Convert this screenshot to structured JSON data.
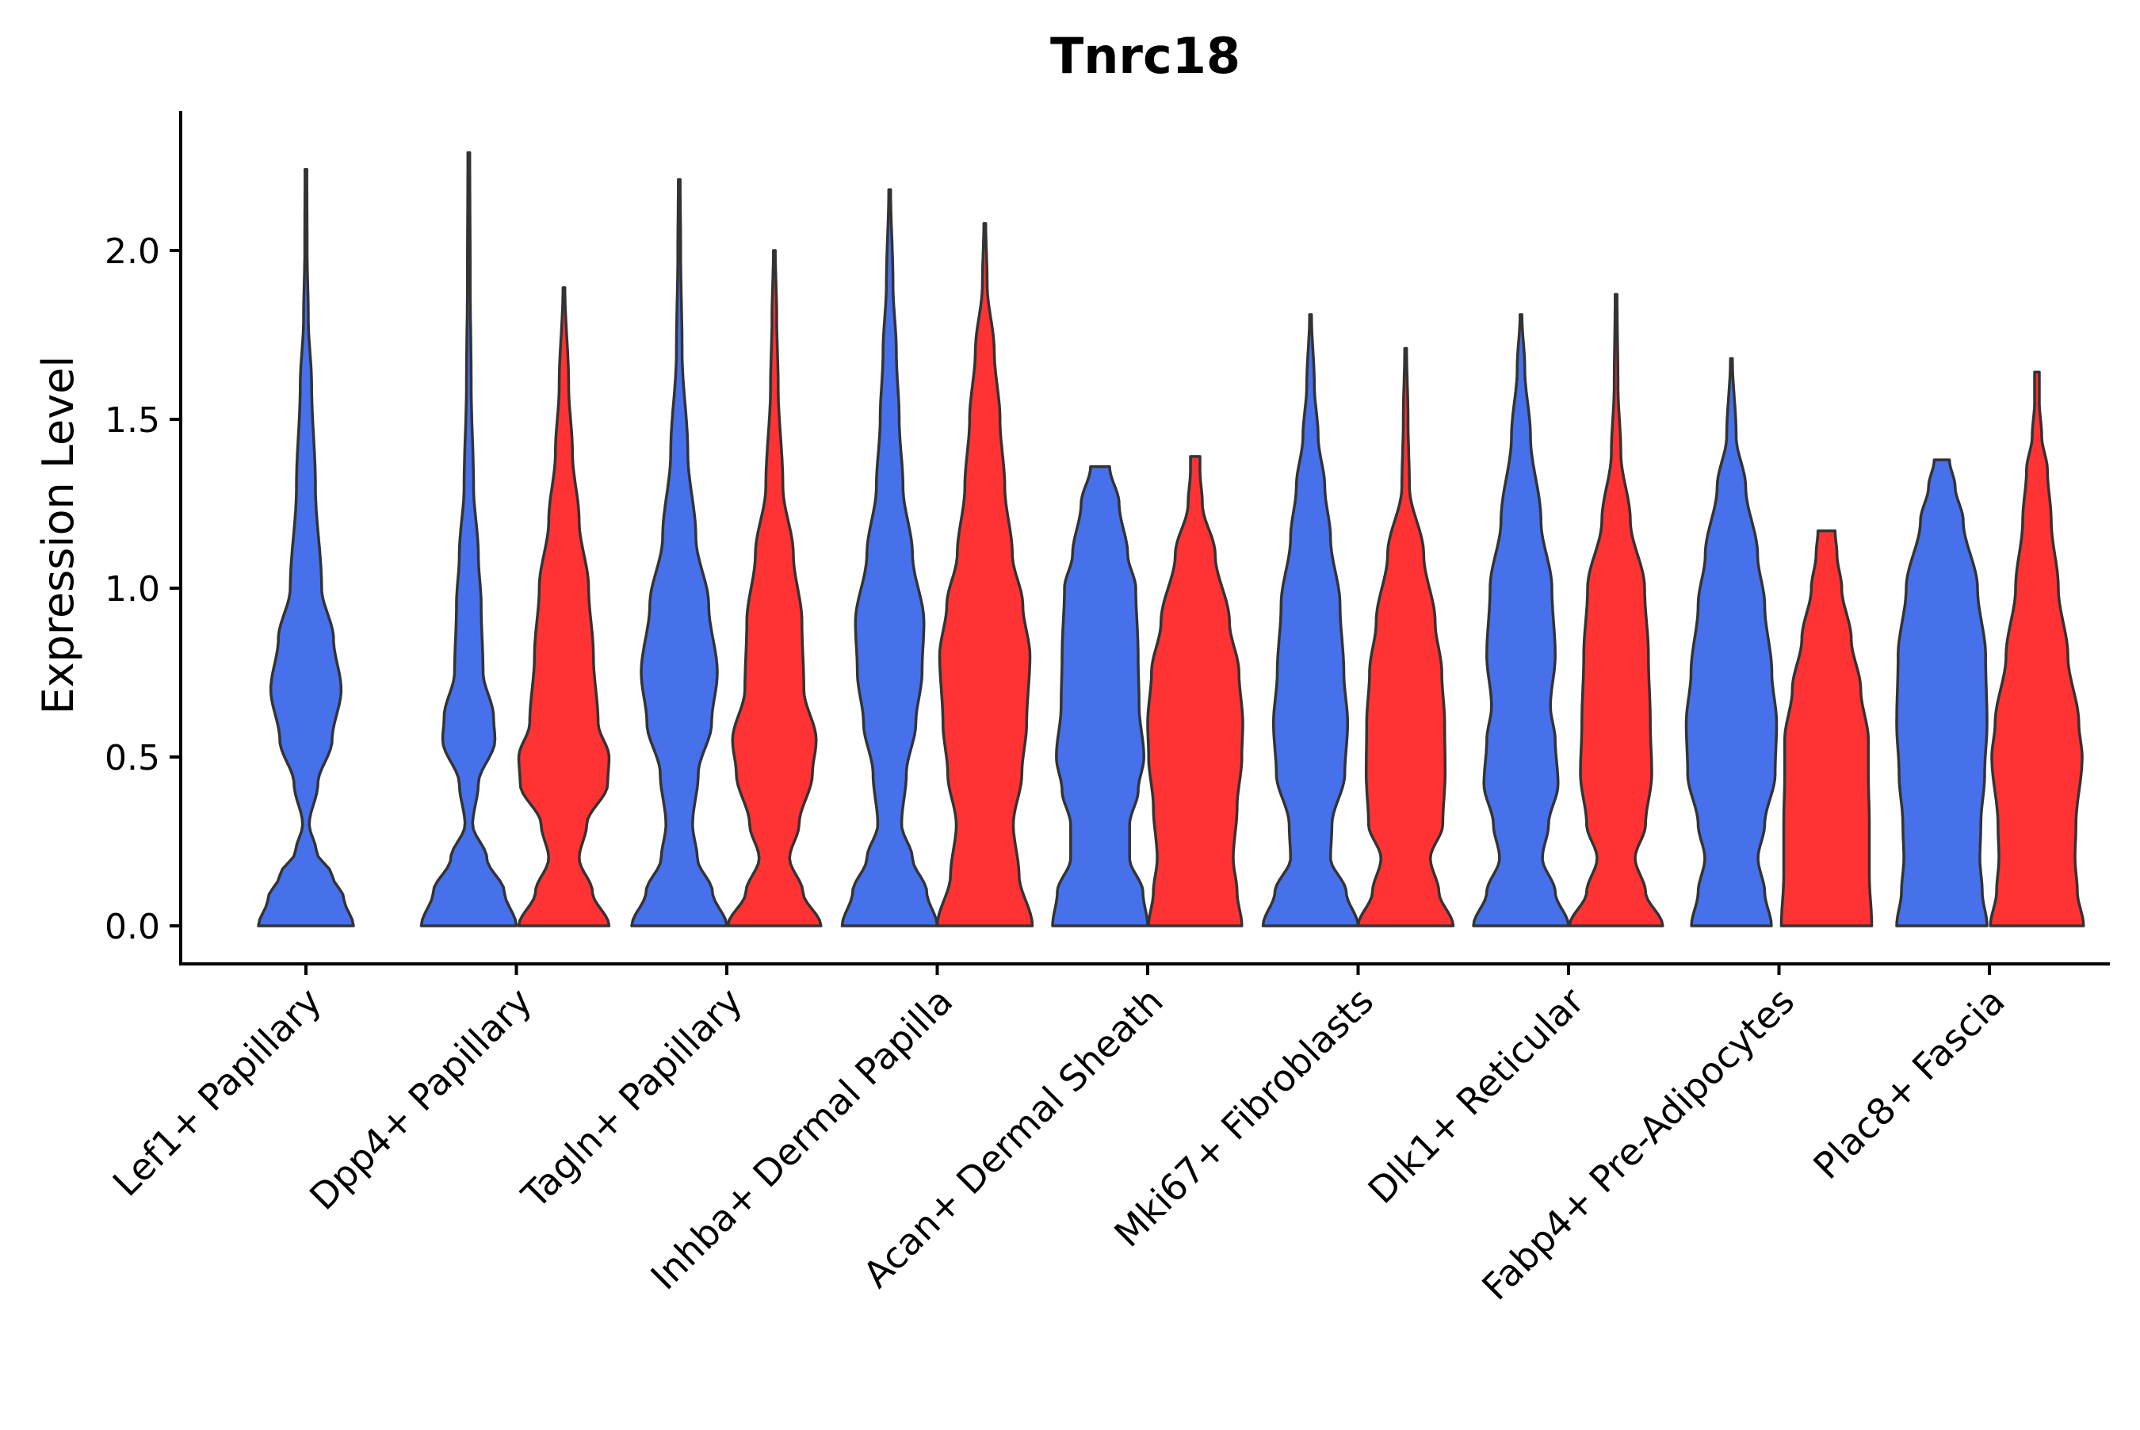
{
  "chart_data": {
    "type": "violin",
    "title": "Tnrc18",
    "xlabel": "",
    "ylabel": "Expression Level",
    "ylim": [
      -0.11,
      2.4
    ],
    "yticks": [
      "0.0",
      "0.5",
      "1.0",
      "1.5",
      "2.0"
    ],
    "ytick_values": [
      0,
      0.5,
      1.0,
      1.5,
      2.0
    ],
    "categories": [
      "Lef1+ Papillary",
      "Dpp4+ Papillary",
      "Tagln+ Papillary",
      "Inhba+ Dermal Papilla",
      "Acan+ Dermal Sheath",
      "Mki67+ Fibroblasts",
      "Dlk1+ Reticular",
      "Fabp4+ Pre-Adipocytes",
      "Plac8+ Fascia"
    ],
    "series_colors": {
      "group1": "#4770EB",
      "group2": "#FF3333"
    },
    "outline_color": "#333333",
    "violins": [
      {
        "category": 0,
        "group": "group1",
        "max": 2.24,
        "profile": [
          [
            0,
            1.0
          ],
          [
            0.08,
            0.8
          ],
          [
            0.15,
            0.55
          ],
          [
            0.22,
            0.22
          ],
          [
            0.3,
            0.07
          ],
          [
            0.42,
            0.25
          ],
          [
            0.55,
            0.55
          ],
          [
            0.7,
            0.74
          ],
          [
            0.85,
            0.58
          ],
          [
            1.0,
            0.33
          ],
          [
            1.3,
            0.2
          ],
          [
            1.6,
            0.12
          ],
          [
            1.8,
            0.05
          ],
          [
            2.0,
            0.025
          ],
          [
            2.24,
            0.02
          ]
        ]
      },
      {
        "category": 1,
        "group": "group1",
        "max": 2.29,
        "profile": [
          [
            0,
            1.0
          ],
          [
            0.1,
            0.75
          ],
          [
            0.2,
            0.38
          ],
          [
            0.3,
            0.08
          ],
          [
            0.42,
            0.2
          ],
          [
            0.55,
            0.55
          ],
          [
            0.62,
            0.52
          ],
          [
            0.75,
            0.3
          ],
          [
            0.95,
            0.26
          ],
          [
            1.1,
            0.2
          ],
          [
            1.3,
            0.1
          ],
          [
            1.6,
            0.05
          ],
          [
            1.9,
            0.03
          ],
          [
            2.29,
            0.02
          ]
        ]
      },
      {
        "category": 1,
        "group": "group2",
        "max": 1.89,
        "profile": [
          [
            0,
            0.95
          ],
          [
            0.1,
            0.6
          ],
          [
            0.2,
            0.32
          ],
          [
            0.3,
            0.48
          ],
          [
            0.42,
            0.92
          ],
          [
            0.5,
            0.95
          ],
          [
            0.6,
            0.72
          ],
          [
            0.8,
            0.62
          ],
          [
            1.0,
            0.52
          ],
          [
            1.2,
            0.32
          ],
          [
            1.4,
            0.18
          ],
          [
            1.6,
            0.1
          ],
          [
            1.89,
            0.02
          ]
        ]
      },
      {
        "category": 2,
        "group": "group1",
        "max": 2.21,
        "profile": [
          [
            0,
            1.0
          ],
          [
            0.1,
            0.7
          ],
          [
            0.2,
            0.38
          ],
          [
            0.3,
            0.28
          ],
          [
            0.45,
            0.4
          ],
          [
            0.6,
            0.68
          ],
          [
            0.75,
            0.8
          ],
          [
            0.95,
            0.62
          ],
          [
            1.15,
            0.35
          ],
          [
            1.4,
            0.18
          ],
          [
            1.7,
            0.06
          ],
          [
            2.0,
            0.03
          ],
          [
            2.21,
            0.02
          ]
        ]
      },
      {
        "category": 2,
        "group": "group2",
        "max": 2.0,
        "profile": [
          [
            0,
            0.98
          ],
          [
            0.1,
            0.6
          ],
          [
            0.2,
            0.32
          ],
          [
            0.3,
            0.52
          ],
          [
            0.45,
            0.8
          ],
          [
            0.55,
            0.88
          ],
          [
            0.7,
            0.62
          ],
          [
            0.9,
            0.58
          ],
          [
            1.1,
            0.4
          ],
          [
            1.3,
            0.18
          ],
          [
            1.6,
            0.08
          ],
          [
            1.8,
            0.05
          ],
          [
            2.0,
            0.02
          ]
        ]
      },
      {
        "category": 3,
        "group": "group1",
        "max": 2.18,
        "profile": [
          [
            0,
            1.0
          ],
          [
            0.1,
            0.78
          ],
          [
            0.2,
            0.48
          ],
          [
            0.3,
            0.25
          ],
          [
            0.45,
            0.35
          ],
          [
            0.6,
            0.55
          ],
          [
            0.75,
            0.68
          ],
          [
            0.9,
            0.72
          ],
          [
            1.1,
            0.48
          ],
          [
            1.3,
            0.28
          ],
          [
            1.5,
            0.2
          ],
          [
            1.7,
            0.14
          ],
          [
            1.9,
            0.07
          ],
          [
            2.18,
            0.02
          ]
        ]
      },
      {
        "category": 3,
        "group": "group2",
        "max": 2.08,
        "profile": [
          [
            0,
            1.0
          ],
          [
            0.15,
            0.72
          ],
          [
            0.3,
            0.6
          ],
          [
            0.45,
            0.78
          ],
          [
            0.6,
            0.88
          ],
          [
            0.8,
            0.95
          ],
          [
            0.95,
            0.8
          ],
          [
            1.1,
            0.58
          ],
          [
            1.3,
            0.42
          ],
          [
            1.5,
            0.32
          ],
          [
            1.7,
            0.2
          ],
          [
            1.9,
            0.05
          ],
          [
            2.08,
            0.02
          ]
        ]
      },
      {
        "category": 4,
        "group": "group1",
        "max": 1.36,
        "profile": [
          [
            0,
            1.0
          ],
          [
            0.1,
            0.9
          ],
          [
            0.2,
            0.62
          ],
          [
            0.3,
            0.62
          ],
          [
            0.4,
            0.8
          ],
          [
            0.5,
            0.92
          ],
          [
            0.65,
            0.82
          ],
          [
            0.8,
            0.8
          ],
          [
            1.0,
            0.75
          ],
          [
            1.1,
            0.58
          ],
          [
            1.25,
            0.4
          ],
          [
            1.36,
            0.2
          ]
        ]
      },
      {
        "category": 4,
        "group": "group2",
        "max": 1.39,
        "profile": [
          [
            0,
            0.98
          ],
          [
            0.1,
            0.88
          ],
          [
            0.2,
            0.8
          ],
          [
            0.35,
            0.88
          ],
          [
            0.5,
            0.98
          ],
          [
            0.6,
            1.0
          ],
          [
            0.75,
            0.92
          ],
          [
            0.9,
            0.72
          ],
          [
            1.1,
            0.42
          ],
          [
            1.25,
            0.15
          ],
          [
            1.35,
            0.1
          ],
          [
            1.39,
            0.1
          ]
        ]
      },
      {
        "category": 5,
        "group": "group1",
        "max": 1.81,
        "profile": [
          [
            0,
            1.0
          ],
          [
            0.1,
            0.75
          ],
          [
            0.2,
            0.42
          ],
          [
            0.3,
            0.45
          ],
          [
            0.45,
            0.72
          ],
          [
            0.6,
            0.78
          ],
          [
            0.75,
            0.7
          ],
          [
            0.95,
            0.62
          ],
          [
            1.15,
            0.42
          ],
          [
            1.3,
            0.3
          ],
          [
            1.45,
            0.16
          ],
          [
            1.6,
            0.08
          ],
          [
            1.81,
            0.02
          ]
        ]
      },
      {
        "category": 5,
        "group": "group2",
        "max": 1.71,
        "profile": [
          [
            0,
            1.0
          ],
          [
            0.1,
            0.7
          ],
          [
            0.2,
            0.52
          ],
          [
            0.3,
            0.78
          ],
          [
            0.45,
            0.83
          ],
          [
            0.6,
            0.82
          ],
          [
            0.75,
            0.76
          ],
          [
            0.9,
            0.62
          ],
          [
            1.1,
            0.38
          ],
          [
            1.3,
            0.08
          ],
          [
            1.5,
            0.05
          ],
          [
            1.71,
            0.02
          ]
        ]
      },
      {
        "category": 6,
        "group": "group1",
        "max": 1.81,
        "profile": [
          [
            0,
            1.0
          ],
          [
            0.1,
            0.72
          ],
          [
            0.2,
            0.45
          ],
          [
            0.3,
            0.58
          ],
          [
            0.42,
            0.78
          ],
          [
            0.55,
            0.72
          ],
          [
            0.65,
            0.62
          ],
          [
            0.8,
            0.72
          ],
          [
            1.0,
            0.65
          ],
          [
            1.2,
            0.42
          ],
          [
            1.45,
            0.2
          ],
          [
            1.65,
            0.08
          ],
          [
            1.81,
            0.02
          ]
        ]
      },
      {
        "category": 6,
        "group": "group2",
        "max": 1.87,
        "profile": [
          [
            0,
            0.98
          ],
          [
            0.1,
            0.62
          ],
          [
            0.2,
            0.4
          ],
          [
            0.3,
            0.62
          ],
          [
            0.45,
            0.75
          ],
          [
            0.6,
            0.72
          ],
          [
            0.8,
            0.68
          ],
          [
            1.0,
            0.6
          ],
          [
            1.2,
            0.3
          ],
          [
            1.4,
            0.1
          ],
          [
            1.6,
            0.04
          ],
          [
            1.87,
            0.02
          ]
        ]
      },
      {
        "category": 7,
        "group": "group1",
        "max": 1.68,
        "profile": [
          [
            0,
            0.84
          ],
          [
            0.1,
            0.7
          ],
          [
            0.2,
            0.56
          ],
          [
            0.3,
            0.7
          ],
          [
            0.45,
            0.92
          ],
          [
            0.6,
            0.95
          ],
          [
            0.75,
            0.85
          ],
          [
            0.95,
            0.7
          ],
          [
            1.1,
            0.55
          ],
          [
            1.3,
            0.3
          ],
          [
            1.45,
            0.1
          ],
          [
            1.68,
            0.02
          ]
        ]
      },
      {
        "category": 7,
        "group": "group2",
        "max": 1.17,
        "profile": [
          [
            0,
            0.95
          ],
          [
            0.15,
            0.9
          ],
          [
            0.3,
            0.9
          ],
          [
            0.45,
            0.88
          ],
          [
            0.55,
            0.88
          ],
          [
            0.7,
            0.72
          ],
          [
            0.85,
            0.52
          ],
          [
            1.0,
            0.32
          ],
          [
            1.1,
            0.22
          ],
          [
            1.17,
            0.18
          ]
        ]
      },
      {
        "category": 8,
        "group": "group1",
        "max": 1.38,
        "profile": [
          [
            0,
            0.95
          ],
          [
            0.1,
            0.85
          ],
          [
            0.2,
            0.8
          ],
          [
            0.3,
            0.82
          ],
          [
            0.45,
            0.9
          ],
          [
            0.6,
            0.95
          ],
          [
            0.8,
            0.92
          ],
          [
            1.0,
            0.75
          ],
          [
            1.2,
            0.45
          ],
          [
            1.3,
            0.28
          ],
          [
            1.38,
            0.16
          ]
        ]
      },
      {
        "category": 8,
        "group": "group2",
        "max": 1.64,
        "profile": [
          [
            0,
            0.98
          ],
          [
            0.1,
            0.85
          ],
          [
            0.2,
            0.8
          ],
          [
            0.3,
            0.82
          ],
          [
            0.5,
            0.95
          ],
          [
            0.6,
            0.88
          ],
          [
            0.8,
            0.65
          ],
          [
            1.0,
            0.45
          ],
          [
            1.2,
            0.3
          ],
          [
            1.35,
            0.22
          ],
          [
            1.45,
            0.1
          ],
          [
            1.55,
            0.05
          ],
          [
            1.64,
            0.05
          ]
        ]
      }
    ]
  }
}
